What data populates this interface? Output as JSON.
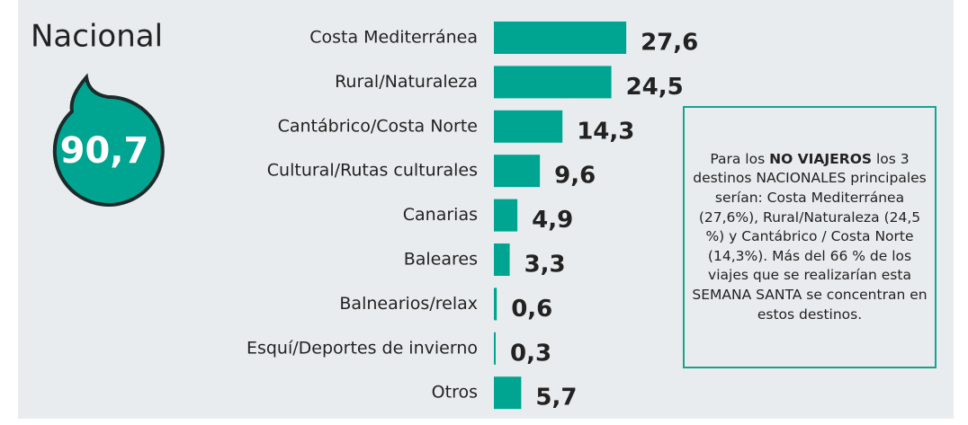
{
  "chart_data": {
    "type": "bar",
    "orientation": "horizontal",
    "title": "Nacional",
    "highlight_value": 90.7,
    "highlight_label": "90,7",
    "categories": [
      "Costa Mediterránea",
      "Rural/Naturaleza",
      "Cantábrico/Costa Norte",
      "Cultural/Rutas culturales",
      "Canarias",
      "Baleares",
      "Balnearios/relax",
      "Esquí/Deportes de invierno",
      "Otros"
    ],
    "values": [
      27.6,
      24.5,
      14.3,
      9.6,
      4.9,
      3.3,
      0.6,
      0.3,
      5.7
    ],
    "value_labels": [
      "27,6",
      "24,5",
      "14,3",
      "9,6",
      "4,9",
      "3,3",
      "0,6",
      "0,3",
      "5,7"
    ],
    "color": "#00a591",
    "note": {
      "before": "Para los ",
      "bold": "NO VIAJEROS",
      "after": " los 3 destinos NACIONALES principales serían: Costa Mediterránea (27,6%), Rural/Naturaleza (24,5 %) y Cantábrico / Costa Norte (14,3%). Más del 66 % de los viajes que se realizarían esta SEMANA SANTA se concentran en estos destinos."
    }
  }
}
